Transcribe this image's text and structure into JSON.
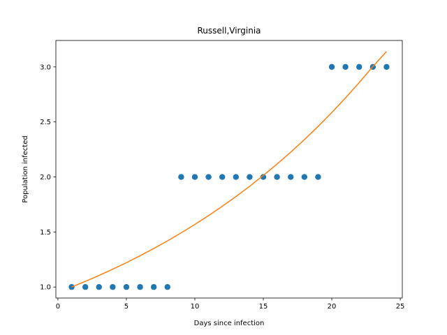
{
  "chart_data": {
    "type": "scatter",
    "title": "Russell,Virginia",
    "xlabel": "Days since infection",
    "ylabel": "Population infected",
    "xlim": [
      -0.15,
      25.15
    ],
    "ylim": [
      0.9,
      3.24
    ],
    "x_ticks": [
      0,
      5,
      10,
      15,
      20,
      25
    ],
    "x_tick_labels": [
      "0",
      "5",
      "10",
      "15",
      "20",
      "25"
    ],
    "y_ticks": [
      1.0,
      1.5,
      2.0,
      2.5,
      3.0
    ],
    "y_tick_labels": [
      "1.0",
      "1.5",
      "2.0",
      "2.5",
      "3.0"
    ],
    "grid": false,
    "legend": "none",
    "series": [
      {
        "kind": "points",
        "color": "#1f77b4",
        "x": [
          1,
          2,
          3,
          4,
          5,
          6,
          7,
          8,
          9,
          10,
          11,
          12,
          13,
          14,
          15,
          16,
          17,
          18,
          19,
          20,
          21,
          22,
          23,
          24
        ],
        "y": [
          1,
          1,
          1,
          1,
          1,
          1,
          1,
          1,
          2,
          2,
          2,
          2,
          2,
          2,
          2,
          2,
          2,
          2,
          2,
          3,
          3,
          3,
          3,
          3
        ]
      },
      {
        "kind": "line",
        "color": "#ff7f0e",
        "x": [
          1,
          2,
          3,
          4,
          5,
          6,
          7,
          8,
          9,
          10,
          11,
          12,
          13,
          14,
          15,
          16,
          17,
          18,
          19,
          20,
          21,
          22,
          23,
          24
        ],
        "y": [
          1.0,
          1.051,
          1.105,
          1.162,
          1.221,
          1.284,
          1.35,
          1.419,
          1.492,
          1.568,
          1.649,
          1.733,
          1.822,
          1.915,
          2.014,
          2.117,
          2.225,
          2.339,
          2.459,
          2.585,
          2.718,
          2.857,
          3.003,
          3.14
        ]
      }
    ]
  }
}
